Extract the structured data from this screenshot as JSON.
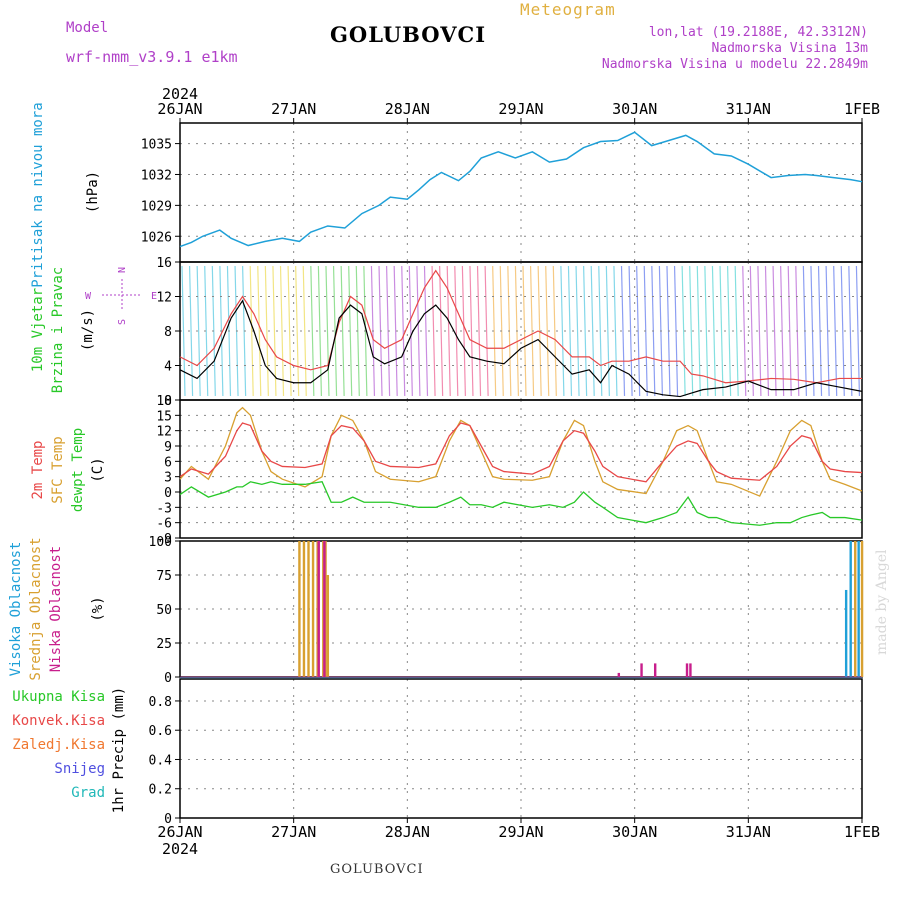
{
  "header": {
    "model_label": "Model",
    "model_name": "wrf-nmm_v3.9.1 e1km",
    "location": "GOLUBOVCI",
    "chart_type_label": "Meteogram",
    "lonlat": "lon,lat (19.2188E, 42.3312N)",
    "elevation": "Nadmorska Visina 13m",
    "model_elevation": "Nadmorska Visina u modelu 22.2849m",
    "footer_location": "GOLUBOVCI",
    "watermark": "made by Angel"
  },
  "colors": {
    "pressure": "#1fa0d8",
    "temp2m": "#e84848",
    "sfc_temp": "#d8a030",
    "dewpt": "#28c828",
    "cloud_high": "#1fa0d8",
    "cloud_mid": "#d8a030",
    "cloud_low": "#c81e8c",
    "precip_total": "#28c828",
    "precip_conv": "#e84848",
    "precip_frozen": "#f07830",
    "precip_snow": "#5050e0",
    "precip_hail": "#20b8b8",
    "wind_axis_label": "#28c828",
    "compass": "#b040c8"
  },
  "chart_data": [
    {
      "type": "line",
      "name": "pressure",
      "ylabel_parts": [
        "Pritisak na nivou mora",
        "(hPa)"
      ],
      "yticks": [
        "1035",
        "1032",
        "1029",
        "1026"
      ],
      "ylim": [
        1023.5,
        1037
      ],
      "x_days": [
        0,
        0.1,
        0.2,
        0.35,
        0.45,
        0.6,
        0.75,
        0.9,
        1.05,
        1.15,
        1.3,
        1.45,
        1.6,
        1.75,
        1.85,
        2.0,
        2.1,
        2.2,
        2.3,
        2.45,
        2.55,
        2.65,
        2.8,
        2.95,
        3.1,
        3.25,
        3.4,
        3.55,
        3.7,
        3.85,
        4.0,
        4.15,
        4.3,
        4.45,
        4.55,
        4.7,
        4.85,
        5.0,
        5.2,
        5.35,
        5.5,
        5.6,
        5.75,
        5.9,
        6.0
      ],
      "y": [
        1025,
        1025.4,
        1026,
        1026.6,
        1025.8,
        1025.1,
        1025.5,
        1025.8,
        1025.5,
        1026.4,
        1027,
        1026.8,
        1028.2,
        1029,
        1029.8,
        1029.6,
        1030.5,
        1031.5,
        1032.2,
        1031.4,
        1032.3,
        1033.6,
        1034.2,
        1033.6,
        1034.2,
        1033.2,
        1033.5,
        1034.6,
        1035.2,
        1035.3,
        1036.1,
        1034.8,
        1035.3,
        1035.8,
        1035.2,
        1034,
        1033.8,
        1033,
        1031.7,
        1031.9,
        1032,
        1031.9,
        1031.7,
        1031.5,
        1031.3
      ]
    },
    {
      "type": "line",
      "name": "wind",
      "ylabel_parts": [
        "10m Vjetar",
        "Brzina i Pravac",
        "(m/s)"
      ],
      "compass_labels": [
        "N",
        "W",
        "E",
        "S"
      ],
      "yticks": [
        "16",
        "12",
        "8",
        "4",
        "0"
      ],
      "ylim": [
        0,
        16
      ],
      "x_days": [
        0,
        0.15,
        0.3,
        0.45,
        0.55,
        0.65,
        0.75,
        0.85,
        1.0,
        1.15,
        1.3,
        1.4,
        1.5,
        1.6,
        1.7,
        1.8,
        1.95,
        2.05,
        2.15,
        2.25,
        2.35,
        2.45,
        2.55,
        2.7,
        2.85,
        3.0,
        3.15,
        3.3,
        3.45,
        3.6,
        3.7,
        3.8,
        3.95,
        4.1,
        4.25,
        4.4,
        4.5,
        4.6,
        4.8,
        5.0,
        5.2,
        5.4,
        5.6,
        5.8,
        6.0
      ],
      "speed": [
        3.5,
        2.5,
        4.5,
        9.5,
        11.5,
        8,
        4,
        2.5,
        2,
        2,
        3.5,
        9.5,
        11,
        10,
        5,
        4.2,
        5,
        8,
        10,
        11,
        9.5,
        7,
        5,
        4.5,
        4.2,
        6,
        7,
        5,
        3,
        3.5,
        2,
        4,
        3,
        1,
        0.6,
        0.4,
        0.8,
        1.2,
        1.5,
        2.2,
        1.2,
        1.2,
        2,
        1.5,
        1
      ],
      "gust": [
        5,
        4,
        6,
        10,
        12,
        10,
        7,
        5,
        4,
        3.5,
        4,
        9,
        12,
        11,
        7,
        6,
        7,
        10,
        13,
        15,
        13,
        10,
        7,
        6,
        6,
        7,
        8,
        7,
        5,
        5,
        4,
        4.5,
        4.5,
        5,
        4.5,
        4.5,
        3,
        2.8,
        2,
        2.2,
        2.5,
        2.4,
        2,
        2.5,
        2.5
      ],
      "band_colors": [
        "#20b8d8",
        "#e8d020",
        "#40c840",
        "#a030c8",
        "#e83070",
        "#f0a020",
        "#20b8d8",
        "#3050e8",
        "#20c8c8",
        "#a030c8",
        "#3050e8"
      ]
    },
    {
      "type": "line",
      "name": "temperature",
      "ylabel_parts": [
        "2m Temp",
        "SFC Temp",
        "dewpt Temp",
        "(C)"
      ],
      "yticks": [
        "18",
        "15",
        "12",
        "9",
        "6",
        "3",
        "0",
        "-3",
        "-6",
        "-9"
      ],
      "ylim": [
        -9,
        18
      ],
      "x_days": [
        0,
        0.1,
        0.25,
        0.4,
        0.5,
        0.55,
        0.62,
        0.72,
        0.8,
        0.9,
        1.1,
        1.25,
        1.33,
        1.42,
        1.52,
        1.62,
        1.72,
        1.85,
        2.1,
        2.25,
        2.37,
        2.47,
        2.55,
        2.65,
        2.75,
        2.85,
        3.1,
        3.25,
        3.37,
        3.47,
        3.55,
        3.65,
        3.72,
        3.85,
        4.1,
        4.25,
        4.37,
        4.47,
        4.55,
        4.65,
        4.72,
        4.85,
        5.1,
        5.25,
        5.37,
        5.47,
        5.55,
        5.65,
        5.72,
        5.85,
        6.0
      ],
      "temp2m": [
        3,
        4.5,
        3.5,
        7,
        12,
        13.5,
        13,
        8,
        6,
        5,
        4.8,
        5.5,
        11,
        13,
        12.5,
        10,
        6,
        5,
        4.8,
        5.5,
        11,
        13.5,
        13,
        9,
        5,
        4,
        3.5,
        5,
        10,
        12,
        11.5,
        8,
        5,
        3,
        2,
        6,
        9,
        10,
        9.5,
        6,
        4,
        2.7,
        2.3,
        5,
        9,
        11,
        10.5,
        6,
        4.5,
        4,
        3.8
      ],
      "sfc": [
        2.5,
        5,
        2.5,
        9,
        15.5,
        16.5,
        15,
        8,
        4,
        2.5,
        1,
        3,
        11,
        15,
        14,
        10,
        4,
        2.5,
        2,
        3,
        10,
        14,
        13,
        8,
        3,
        2.5,
        2.3,
        3,
        10,
        14,
        13,
        6,
        2,
        0.5,
        -0.3,
        6,
        12,
        13,
        12,
        6,
        2,
        1.5,
        -0.8,
        6,
        12,
        14,
        13,
        6,
        2.5,
        1.5,
        0.2
      ],
      "dewpt": [
        -0.5,
        1,
        -1,
        0,
        1,
        1,
        2,
        1.5,
        2,
        1.5,
        1.5,
        2,
        -2,
        -2,
        -1,
        -2,
        -2,
        -2,
        -3,
        -3,
        -2,
        -1,
        -2.5,
        -2.5,
        -3,
        -2,
        -3,
        -2.5,
        -3,
        -2,
        0,
        -2,
        -3,
        -5,
        -6,
        -5,
        -4,
        -1,
        -4,
        -5,
        -5,
        -6,
        -6.5,
        -6,
        -6,
        -5,
        -4.5,
        -4,
        -5,
        -5,
        -5.5
      ]
    },
    {
      "type": "bar",
      "name": "cloud_cover",
      "ylabel_parts": [
        "Visoka Oblacnost",
        "Srednja Oblacnost",
        "Niska Oblacnost",
        "(%)"
      ],
      "yticks": [
        "100",
        "75",
        "50",
        "25",
        "0"
      ],
      "ylim": [
        0,
        100
      ],
      "bars": [
        {
          "day": 1.04,
          "series": "mid",
          "value": 100
        },
        {
          "day": 1.08,
          "series": "mid",
          "value": 100
        },
        {
          "day": 1.12,
          "series": "mid",
          "value": 100
        },
        {
          "day": 1.16,
          "series": "mid",
          "value": 100
        },
        {
          "day": 1.2,
          "series": "mid",
          "value": 100
        },
        {
          "day": 1.25,
          "series": "mid",
          "value": 100
        },
        {
          "day": 1.27,
          "series": "mid",
          "value": 100
        },
        {
          "day": 1.29,
          "series": "mid",
          "value": 75
        },
        {
          "day": 1.21,
          "series": "low",
          "value": 100
        },
        {
          "day": 1.26,
          "series": "low",
          "value": 100
        },
        {
          "day": 3.85,
          "series": "low",
          "value": 3
        },
        {
          "day": 4.05,
          "series": "low",
          "value": 10
        },
        {
          "day": 4.17,
          "series": "low",
          "value": 10
        },
        {
          "day": 4.45,
          "series": "low",
          "value": 10
        },
        {
          "day": 4.48,
          "series": "low",
          "value": 10
        },
        {
          "day": 5.85,
          "series": "high",
          "value": 64
        },
        {
          "day": 5.89,
          "series": "high",
          "value": 100
        },
        {
          "day": 5.93,
          "series": "mid",
          "value": 100
        },
        {
          "day": 5.96,
          "series": "high",
          "value": 100
        },
        {
          "day": 5.99,
          "series": "mid",
          "value": 100
        }
      ]
    },
    {
      "type": "bar",
      "name": "precipitation",
      "ylabel": "1hr Precip (mm)",
      "legend": [
        "Ukupna Kisa",
        "Konvek.Kisa",
        "Zaledj.Kisa",
        "Snijeg",
        "Grad"
      ],
      "yticks": [
        "0.8",
        "0.6",
        "0.4",
        "0.2",
        "0"
      ],
      "ylim": [
        0,
        0.95
      ],
      "values": []
    }
  ],
  "xaxis": {
    "year": "2024",
    "day_labels": [
      "26JAN",
      "27JAN",
      "28JAN",
      "29JAN",
      "30JAN",
      "31JAN",
      "1FEB"
    ]
  }
}
